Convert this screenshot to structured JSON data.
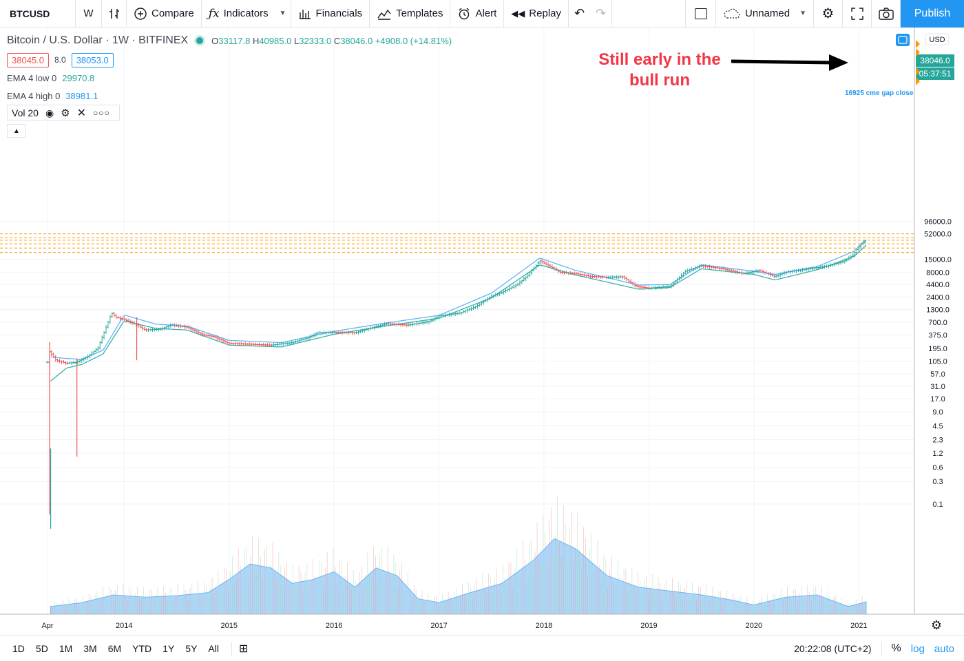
{
  "toolbar": {
    "symbol": "BTCUSD",
    "interval": "W",
    "compare": "Compare",
    "indicators": "Indicators",
    "financials": "Financials",
    "templates": "Templates",
    "alert": "Alert",
    "replay": "Replay",
    "layout_name": "Unnamed",
    "publish": "Publish"
  },
  "legend": {
    "title": "Bitcoin / U.S. Dollar · 1W · BITFINEX",
    "ohlc": {
      "o": "33117.8",
      "h": "40985.0",
      "l": "32333.0",
      "c": "38046.0",
      "change": "+4908.0 (+14.81%)"
    },
    "bid": "38045.0",
    "spread": "8.0",
    "ask": "38053.0",
    "ema_low_label": "EMA 4 low 0",
    "ema_low_value": "29970.8",
    "ema_high_label": "EMA 4 high 0",
    "ema_high_value": "38981.1",
    "vol_label": "Vol 20"
  },
  "annotation": {
    "line1": "Still early in the",
    "line2": "bull run",
    "gap_note": "16925 cme gap close"
  },
  "price_axis": {
    "currency": "USD",
    "last_price": "38046.0",
    "countdown": "05:37:51"
  },
  "bottom": {
    "ranges": [
      "1D",
      "5D",
      "1M",
      "3M",
      "6M",
      "YTD",
      "1Y",
      "5Y",
      "All"
    ],
    "time": "20:22:08 (UTC+2)",
    "percent": "%",
    "log": "log",
    "auto": "auto"
  },
  "colors": {
    "up": "#26a69a",
    "down": "#ef5350",
    "ema_low": "#26a69a",
    "ema_high": "#2196f3",
    "volume_ma": "#90caf9",
    "annotation": "#f23645",
    "accent": "#2196f3",
    "level_lines": "#ff9800"
  },
  "chart_data": {
    "type": "line",
    "title": "Bitcoin / U.S. Dollar · 1W · BITFINEX",
    "scale": "log",
    "yticks": [
      96000,
      52000,
      15000,
      8000,
      4400,
      2400,
      1300,
      700,
      375,
      195,
      105,
      57,
      31,
      17,
      9,
      4.5,
      2.3,
      1.2,
      0.6,
      0.3,
      0.1
    ],
    "ytick_labels": [
      "96000.0",
      "52000.0",
      "15000.0",
      "8000.0",
      "4400.0",
      "2400.0",
      "1300.0",
      "700.0",
      "375.0",
      "195.0",
      "105.0",
      "57.0",
      "31.0",
      "17.0",
      "9.0",
      "4.5",
      "2.3",
      "1.2",
      "0.6",
      "0.3",
      "0.1"
    ],
    "xticks": [
      "Apr",
      "2014",
      "2015",
      "2016",
      "2017",
      "2018",
      "2019",
      "2020",
      "2021"
    ],
    "ylim": [
      0.1,
      96000
    ],
    "series": [
      {
        "name": "Price (weekly close)",
        "x": [
          2013.27,
          2013.29,
          2013.35,
          2013.45,
          2013.55,
          2013.65,
          2013.75,
          2013.88,
          2013.92,
          2014.0,
          2014.1,
          2014.2,
          2014.35,
          2014.45,
          2014.6,
          2014.75,
          2014.85,
          2015.0,
          2015.2,
          2015.4,
          2015.6,
          2015.75,
          2015.85,
          2016.0,
          2016.2,
          2016.4,
          2016.5,
          2016.7,
          2016.9,
          2017.0,
          2017.2,
          2017.35,
          2017.5,
          2017.6,
          2017.75,
          2017.85,
          2017.96,
          2018.05,
          2018.15,
          2018.3,
          2018.45,
          2018.6,
          2018.75,
          2018.88,
          2019.0,
          2019.2,
          2019.35,
          2019.5,
          2019.7,
          2019.9,
          2020.05,
          2020.2,
          2020.3,
          2020.5,
          2020.7,
          2020.85,
          2020.95,
          2021.02,
          2021.07
        ],
        "values": [
          100,
          170,
          110,
          95,
          100,
          130,
          200,
          1100,
          900,
          800,
          650,
          480,
          500,
          620,
          550,
          380,
          350,
          250,
          240,
          230,
          260,
          330,
          420,
          430,
          420,
          570,
          650,
          610,
          720,
          950,
          1100,
          1500,
          2500,
          3000,
          4500,
          7000,
          14000,
          11000,
          8000,
          7500,
          6500,
          6300,
          6400,
          4000,
          3700,
          4000,
          8500,
          11000,
          9500,
          7500,
          8700,
          6500,
          8000,
          9300,
          10800,
          13500,
          19000,
          32000,
          38046
        ]
      },
      {
        "name": "EMA 4 low",
        "x": [
          2013.3,
          2013.45,
          2013.6,
          2013.8,
          2014.0,
          2014.3,
          2014.6,
          2015.0,
          2015.5,
          2016.0,
          2016.5,
          2017.0,
          2017.5,
          2017.96,
          2018.3,
          2018.9,
          2019.2,
          2019.5,
          2020.0,
          2020.2,
          2020.6,
          2020.95,
          2021.07
        ],
        "values": [
          40,
          75,
          90,
          150,
          750,
          520,
          480,
          230,
          210,
          390,
          590,
          850,
          2300,
          11500,
          7000,
          3500,
          3800,
          9500,
          7200,
          5500,
          9000,
          17000,
          29970.8
        ]
      },
      {
        "name": "EMA 4 high",
        "x": [
          2013.3,
          2013.45,
          2013.6,
          2013.8,
          2014.0,
          2014.3,
          2014.6,
          2015.0,
          2015.5,
          2016.0,
          2016.5,
          2017.0,
          2017.5,
          2017.96,
          2018.3,
          2018.9,
          2019.2,
          2019.5,
          2020.0,
          2020.2,
          2020.6,
          2020.95,
          2021.07
        ],
        "values": [
          130,
          120,
          115,
          180,
          1000,
          640,
          580,
          290,
          260,
          450,
          680,
          980,
          2900,
          16000,
          8800,
          4300,
          4400,
          11500,
          8400,
          7200,
          10500,
          22000,
          38981.1
        ]
      }
    ],
    "levels": [
      52000,
      43000,
      38046,
      32000,
      26000,
      21000
    ],
    "volume_ma": {
      "x": [
        2013.3,
        2013.6,
        2013.9,
        2014.2,
        2014.5,
        2014.8,
        2015.0,
        2015.2,
        2015.4,
        2015.6,
        2015.8,
        2016.0,
        2016.2,
        2016.4,
        2016.6,
        2016.8,
        2017.0,
        2017.3,
        2017.6,
        2017.9,
        2018.1,
        2018.3,
        2018.6,
        2018.9,
        2019.2,
        2019.5,
        2019.8,
        2020.0,
        2020.3,
        2020.6,
        2020.9,
        2021.07
      ],
      "values": [
        0.1,
        0.15,
        0.25,
        0.22,
        0.24,
        0.28,
        0.45,
        0.65,
        0.6,
        0.4,
        0.45,
        0.55,
        0.35,
        0.6,
        0.5,
        0.2,
        0.15,
        0.28,
        0.4,
        0.7,
        0.98,
        0.85,
        0.5,
        0.35,
        0.3,
        0.25,
        0.18,
        0.12,
        0.22,
        0.25,
        0.1,
        0.16
      ]
    }
  }
}
